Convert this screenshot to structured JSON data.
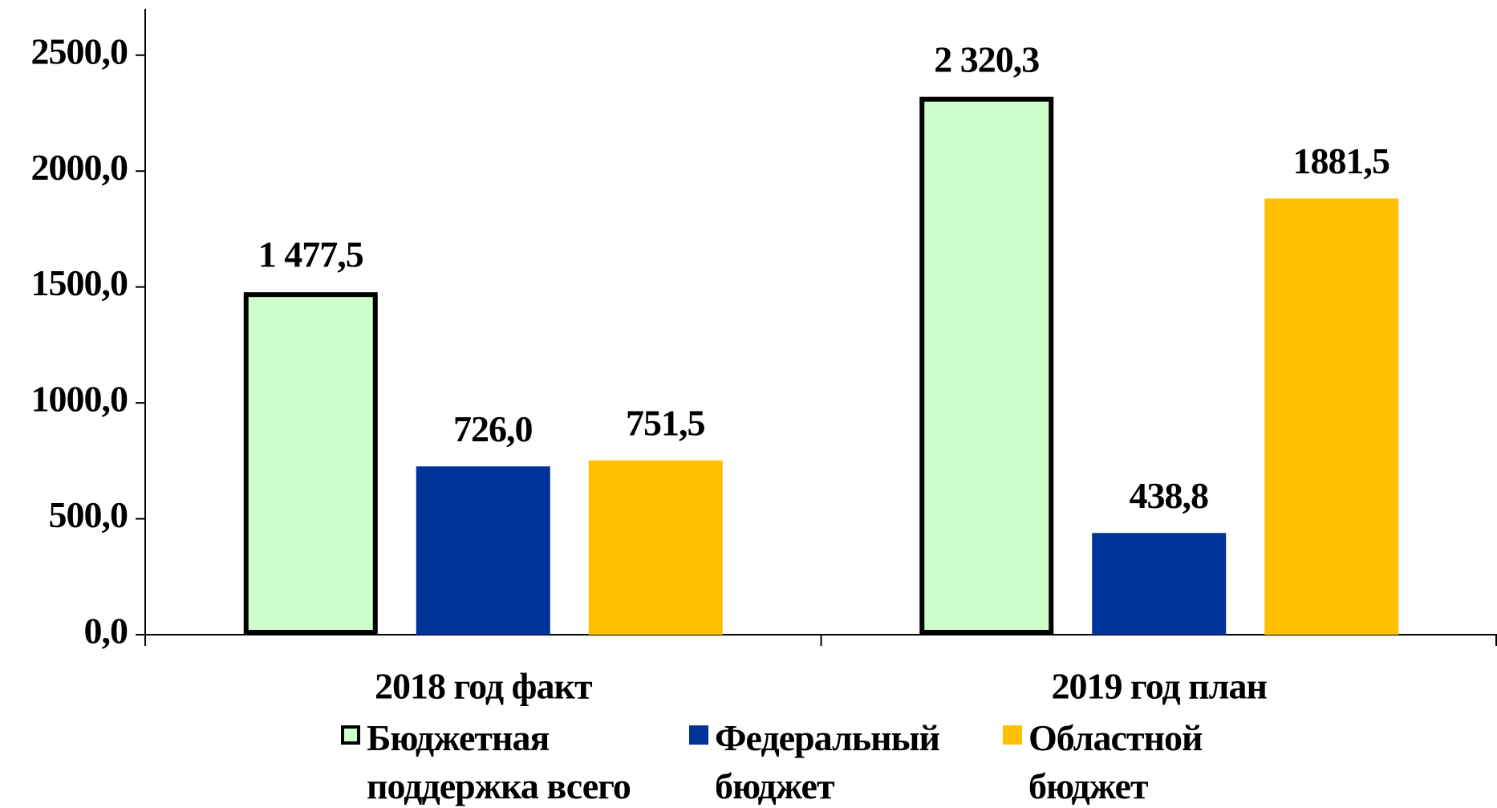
{
  "chart_data": {
    "type": "bar",
    "categories": [
      "2018 год факт",
      "2019 год план"
    ],
    "series": [
      {
        "name": "Бюджетная поддержка всего",
        "color": "#ccffcc",
        "edgecolor": "#000000",
        "values": [
          1477.5,
          2320.3
        ],
        "value_labels": [
          "1 477,5",
          "2 320,3"
        ]
      },
      {
        "name": "Федеральный бюджет",
        "color": "#003399",
        "values": [
          726.0,
          438.8
        ],
        "value_labels": [
          "726,0",
          "438,8"
        ]
      },
      {
        "name": "Областной бюджет",
        "color": "#ffc000",
        "values": [
          751.5,
          1881.5
        ],
        "value_labels": [
          "751,5",
          "1881,5"
        ]
      }
    ],
    "ylim": [
      0,
      2700
    ],
    "yticks": [
      {
        "value": 0,
        "label": "0,0"
      },
      {
        "value": 500,
        "label": "500,0"
      },
      {
        "value": 1000,
        "label": "1000,0"
      },
      {
        "value": 1500,
        "label": "1500,0"
      },
      {
        "value": 2000,
        "label": "2000,0"
      },
      {
        "value": 2500,
        "label": "2500,0"
      }
    ],
    "grid": false,
    "legend": "bottom"
  }
}
